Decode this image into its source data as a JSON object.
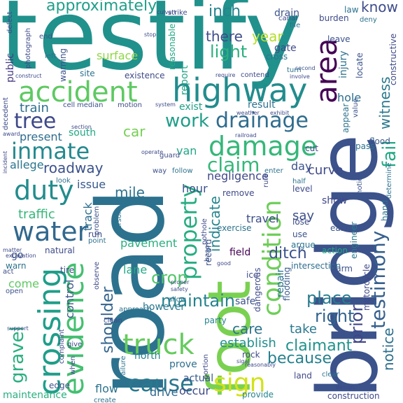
{
  "words": [
    {
      "text": "testify",
      "color": "#21918c"
    },
    {
      "text": "road",
      "color": "#2c728e"
    },
    {
      "text": "bridge",
      "color": "#3b528b"
    },
    {
      "text": "foot",
      "color": "#7ad151"
    },
    {
      "text": "highway",
      "color": "#228c8d"
    },
    {
      "text": "accident",
      "color": "#5ec962"
    },
    {
      "text": "area",
      "color": "#440154"
    },
    {
      "text": "damage",
      "color": "#35b779"
    },
    {
      "text": "crossing",
      "color": "#1f9e89"
    },
    {
      "text": "evidence",
      "color": "#44bf70"
    },
    {
      "text": "condition",
      "color": "#6ece58"
    },
    {
      "text": "testimony",
      "color": "#355f8d"
    },
    {
      "text": "property",
      "color": "#26ad81"
    },
    {
      "text": "water",
      "color": "#31688e"
    },
    {
      "text": "inmate",
      "color": "#23898e"
    },
    {
      "text": "duty",
      "color": "#228c8d"
    },
    {
      "text": "tree",
      "color": "#3e4989"
    },
    {
      "text": "drainage",
      "color": "#2f6c8e"
    },
    {
      "text": "truck",
      "color": "#65cb5e"
    },
    {
      "text": "sign",
      "color": "#d2e21b"
    },
    {
      "text": "cause",
      "color": "#2a788e"
    },
    {
      "text": "gravel",
      "color": "#29af7f"
    },
    {
      "text": "fail",
      "color": "#22a884"
    },
    {
      "text": "witness",
      "color": "#2a788e"
    },
    {
      "text": "claim",
      "color": "#35b779"
    },
    {
      "text": "work",
      "color": "#1f9e89"
    },
    {
      "text": "prior",
      "color": "#404688"
    },
    {
      "text": "right",
      "color": "#32648e"
    },
    {
      "text": "place",
      "color": "#287c8e"
    },
    {
      "text": "notice",
      "color": "#2d708e"
    },
    {
      "text": "claimant",
      "color": "#20928c"
    },
    {
      "text": "because",
      "color": "#26818e"
    },
    {
      "text": "shoulder",
      "color": "#33638d"
    },
    {
      "text": "maintain",
      "color": "#26828e"
    },
    {
      "text": "ditch",
      "color": "#3b528b"
    },
    {
      "text": "crop",
      "color": "#52c569"
    },
    {
      "text": "approximately",
      "color": "#1f9e89"
    },
    {
      "text": "light",
      "color": "#2ab07f"
    },
    {
      "text": "there",
      "color": "#3e4c8a"
    },
    {
      "text": "inch",
      "color": "#25848e"
    },
    {
      "text": "year",
      "color": "#b5de2b"
    },
    {
      "text": "know",
      "color": "#3e4c8a"
    },
    {
      "text": "surface",
      "color": "#8fd744"
    },
    {
      "text": "train",
      "color": "#2e6f8e"
    },
    {
      "text": "roadway",
      "color": "#3b528b"
    },
    {
      "text": "mile",
      "color": "#2c728e"
    },
    {
      "text": "traffic",
      "color": "#35b779"
    },
    {
      "text": "car",
      "color": "#75d054"
    },
    {
      "text": "van",
      "color": "#22a785"
    },
    {
      "text": "indicate",
      "color": "#25858e"
    },
    {
      "text": "care",
      "color": "#2c738e"
    },
    {
      "text": "take",
      "color": "#2a788e"
    },
    {
      "text": "establish",
      "color": "#228d8d"
    },
    {
      "text": "lane",
      "color": "#22a884"
    },
    {
      "text": "curve",
      "color": "#3e4a89"
    },
    {
      "text": "result",
      "color": "#2d708e"
    },
    {
      "text": "hole",
      "color": "#2e6e8e"
    },
    {
      "text": "exist",
      "color": "#1fa188"
    },
    {
      "text": "report",
      "color": "#20a386"
    },
    {
      "text": "present",
      "color": "#2e6d8e"
    },
    {
      "text": "south",
      "color": "#22a785"
    },
    {
      "text": "public",
      "color": "#453882"
    },
    {
      "text": "track",
      "color": "#2e6e8e"
    },
    {
      "text": "hour",
      "color": "#3b528b"
    },
    {
      "text": "say",
      "color": "#3c4f8a"
    },
    {
      "text": "day",
      "color": "#3b528b"
    },
    {
      "text": "negligence",
      "color": "#3f4889"
    },
    {
      "text": "allege",
      "color": "#2a768e"
    },
    {
      "text": "issue",
      "color": "#38598c"
    },
    {
      "text": "travel",
      "color": "#3d4e8a"
    },
    {
      "text": "show",
      "color": "#3f4889"
    },
    {
      "text": "pavement",
      "color": "#29af7f"
    },
    {
      "text": "come",
      "color": "#5ec962"
    },
    {
      "text": "control",
      "color": "#3b528b"
    },
    {
      "text": "however",
      "color": "#2a788e"
    },
    {
      "text": "north",
      "color": "#26818e"
    },
    {
      "text": "prove",
      "color": "#2d708e"
    },
    {
      "text": "drive",
      "color": "#31688e"
    },
    {
      "text": "flow",
      "color": "#2c728e"
    },
    {
      "text": "occur",
      "color": "#3e4a89"
    },
    {
      "text": "actual",
      "color": "#38598c"
    },
    {
      "text": "maintenance",
      "color": "#29af7f"
    },
    {
      "text": "edge",
      "color": "#3b528b"
    },
    {
      "text": "land",
      "color": "#3f4889"
    },
    {
      "text": "provide",
      "color": "#25848e"
    },
    {
      "text": "construction",
      "color": "#3e4a89"
    },
    {
      "text": "safe",
      "color": "#3b528b"
    },
    {
      "text": "party",
      "color": "#26818e"
    },
    {
      "text": "field",
      "color": "#440154"
    },
    {
      "text": "ice",
      "color": "#3e4a89"
    },
    {
      "text": "repair",
      "color": "#2c728e"
    },
    {
      "text": "intersection",
      "color": "#2e6e8e"
    },
    {
      "text": "action",
      "color": "#22a884"
    },
    {
      "text": "motorcycle",
      "color": "#3f4889"
    },
    {
      "text": "farm",
      "color": "#3b528b"
    },
    {
      "text": "dangerous",
      "color": "#3e4a89"
    },
    {
      "text": "flooding",
      "color": "#38598c"
    },
    {
      "text": "engineer",
      "color": "#2a788e"
    },
    {
      "text": "east",
      "color": "#3b528b"
    },
    {
      "text": "exercise",
      "color": "#2c728e"
    },
    {
      "text": "remove",
      "color": "#3e4a89"
    },
    {
      "text": "lose",
      "color": "#3e4a89"
    },
    {
      "text": "argue",
      "color": "#2c728e"
    },
    {
      "text": "use",
      "color": "#3b528b"
    },
    {
      "text": "hand",
      "color": "#2c728e"
    },
    {
      "text": "level",
      "color": "#3e4a89"
    },
    {
      "text": "half",
      "color": "#2c728e"
    },
    {
      "text": "flood",
      "color": "#38598c"
    },
    {
      "text": "pass",
      "color": "#2c728e"
    },
    {
      "text": "cut",
      "color": "#3e4a89"
    },
    {
      "text": "appear",
      "color": "#2c728e"
    },
    {
      "text": "value",
      "color": "#3b528b"
    },
    {
      "text": "determine",
      "color": "#2c728e"
    },
    {
      "text": "constructive",
      "color": "#3e4a89"
    },
    {
      "text": "locate",
      "color": "#3b528b"
    },
    {
      "text": "injury",
      "color": "#2c728e"
    },
    {
      "text": "gate",
      "color": "#3e4a89"
    },
    {
      "text": "cross",
      "color": "#2c728e"
    },
    {
      "text": "leave",
      "color": "#3b528b"
    },
    {
      "text": "law",
      "color": "#2c728e"
    },
    {
      "text": "burden",
      "color": "#3e4a89"
    },
    {
      "text": "deny",
      "color": "#2c728e"
    },
    {
      "text": "drain",
      "color": "#3b528b"
    },
    {
      "text": "canal",
      "color": "#3e4a89"
    },
    {
      "text": "file",
      "color": "#2c728e"
    },
    {
      "text": "second",
      "color": "#3b528b"
    },
    {
      "text": "contend",
      "color": "#3e4a89"
    },
    {
      "text": "turn",
      "color": "#2c728e"
    },
    {
      "text": "reasonable",
      "color": "#22a884"
    },
    {
      "text": "existence",
      "color": "#3e4a89"
    },
    {
      "text": "warning",
      "color": "#3b528b"
    },
    {
      "text": "photograph",
      "color": "#3e4a89"
    },
    {
      "text": "site",
      "color": "#2c728e"
    },
    {
      "text": "cell",
      "color": "#3e4a89"
    },
    {
      "text": "median",
      "color": "#3b528b"
    },
    {
      "text": "motion",
      "color": "#3e4a89"
    },
    {
      "text": "strike",
      "color": "#3e4a89"
    },
    {
      "text": "culvert",
      "color": "#3e4a89"
    },
    {
      "text": "stop",
      "color": "#3e4a89"
    },
    {
      "text": "decedent",
      "color": "#3e4a89"
    },
    {
      "text": "left",
      "color": "#2c728e"
    },
    {
      "text": "end",
      "color": "#3b528b"
    },
    {
      "text": "defect",
      "color": "#3e4a89"
    },
    {
      "text": "construct",
      "color": "#3e4a89"
    },
    {
      "text": "system",
      "color": "#3e4a89"
    },
    {
      "text": "award",
      "color": "#3e4a89"
    },
    {
      "text": "guard",
      "color": "#3e4a89"
    },
    {
      "text": "follow",
      "color": "#2c728e"
    },
    {
      "text": "way",
      "color": "#3b528b"
    },
    {
      "text": "look",
      "color": "#2c728e"
    },
    {
      "text": "problem",
      "color": "#3b528b"
    },
    {
      "text": "run",
      "color": "#3e4a89"
    },
    {
      "text": "point",
      "color": "#2c728e"
    },
    {
      "text": "person",
      "color": "#2c728e"
    },
    {
      "text": "pothole",
      "color": "#3e4a89"
    },
    {
      "text": "record",
      "color": "#3b528b"
    },
    {
      "text": "natural",
      "color": "#3e4a89"
    },
    {
      "text": "go",
      "color": "#3b528b"
    },
    {
      "text": "warn",
      "color": "#2c728e"
    },
    {
      "text": "act",
      "color": "#3e4a89"
    },
    {
      "text": "open",
      "color": "#3b528b"
    },
    {
      "text": "tire",
      "color": "#3e4a89"
    },
    {
      "text": "observe",
      "color": "#3e4a89"
    },
    {
      "text": "allow",
      "color": "#2c728e"
    },
    {
      "text": "clean",
      "color": "#3e4a89"
    },
    {
      "text": "approach",
      "color": "#2c728e"
    },
    {
      "text": "give",
      "color": "#3e4a89"
    },
    {
      "text": "complaint",
      "color": "#3e4a89"
    },
    {
      "text": "failure",
      "color": "#2c728e"
    },
    {
      "text": "when",
      "color": "#3e4a89"
    },
    {
      "text": "create",
      "color": "#2c728e"
    },
    {
      "text": "portion",
      "color": "#3e4a89"
    },
    {
      "text": "notice",
      "color": "#3b528b"
    },
    {
      "text": "rock",
      "color": "#3e4a89"
    },
    {
      "text": "clear",
      "color": "#2c728e"
    },
    {
      "text": "design",
      "color": "#3e4a89"
    },
    {
      "text": "enter",
      "color": "#2c728e"
    },
    {
      "text": "rule",
      "color": "#3e4a89"
    },
    {
      "text": "sigal",
      "color": "#3e4a89"
    },
    {
      "text": "excavation",
      "color": "#3e4a89"
    },
    {
      "text": "matter",
      "color": "#3e4a89"
    },
    {
      "text": "base",
      "color": "#3b528b"
    },
    {
      "text": "section",
      "color": "#3e4a89"
    },
    {
      "text": "operate",
      "color": "#3e4a89"
    },
    {
      "text": "railroad",
      "color": "#3e4a89"
    },
    {
      "text": "support",
      "color": "#3e4a89"
    },
    {
      "text": "incident",
      "color": "#3e4a89"
    },
    {
      "text": "proper",
      "color": "#3e4a89"
    },
    {
      "text": "safety",
      "color": "#3e4a89"
    },
    {
      "text": "good",
      "color": "#3e4a89"
    },
    {
      "text": "reasonably",
      "color": "#3e4a89"
    },
    {
      "text": "weather",
      "color": "#3e4a89"
    },
    {
      "text": "exhibit",
      "color": "#3e4a89"
    },
    {
      "text": "require",
      "color": "#3e4a89"
    },
    {
      "text": "involve",
      "color": "#3e4a89"
    }
  ]
}
